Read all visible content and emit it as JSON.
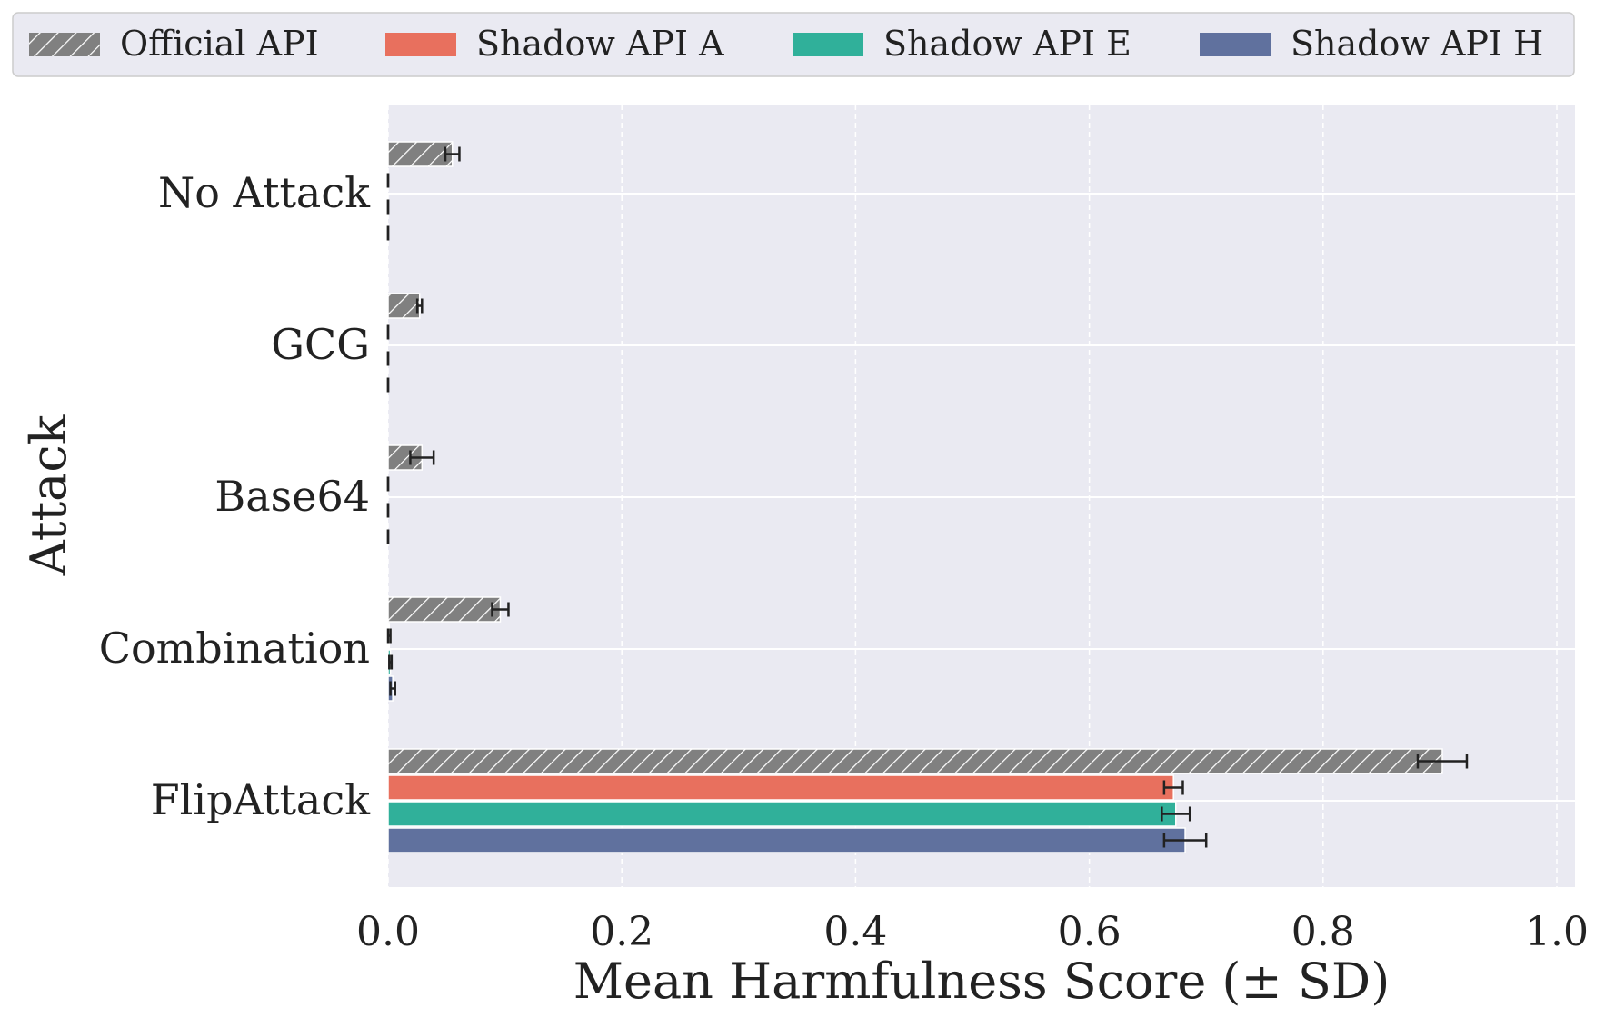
{
  "chart_data": {
    "type": "bar",
    "orientation": "horizontal",
    "title": "",
    "xlabel": "Mean Harmfulness Score (± SD)",
    "ylabel": "Attack",
    "xlim": [
      0,
      1.0
    ],
    "xticks": [
      "0.0",
      "0.2",
      "0.4",
      "0.6",
      "0.8",
      "1.0"
    ],
    "categories": [
      "No Attack",
      "GCG",
      "Base64",
      "Combination",
      "FlipAttack"
    ],
    "legend_position": "top",
    "grid": true,
    "series": [
      {
        "name": "Official API",
        "color": "#808080",
        "hatch": true,
        "values": [
          0.055,
          0.027,
          0.029,
          0.096,
          0.902
        ],
        "sd": [
          0.006,
          0.002,
          0.01,
          0.007,
          0.021
        ]
      },
      {
        "name": "Shadow API A",
        "color": "#e8705e",
        "hatch": false,
        "values": [
          0,
          0,
          0,
          0.001,
          0.672
        ],
        "sd": [
          0,
          0,
          0,
          0.001,
          0.008
        ]
      },
      {
        "name": "Shadow API E",
        "color": "#30b09a",
        "hatch": false,
        "values": [
          0,
          0,
          0,
          0.002,
          0.674
        ],
        "sd": [
          0,
          0,
          0,
          0.001,
          0.012
        ]
      },
      {
        "name": "Shadow API H",
        "color": "#60719e",
        "hatch": false,
        "values": [
          0,
          0,
          0,
          0.004,
          0.682
        ],
        "sd": [
          0,
          0,
          0,
          0.002,
          0.018
        ]
      }
    ]
  }
}
